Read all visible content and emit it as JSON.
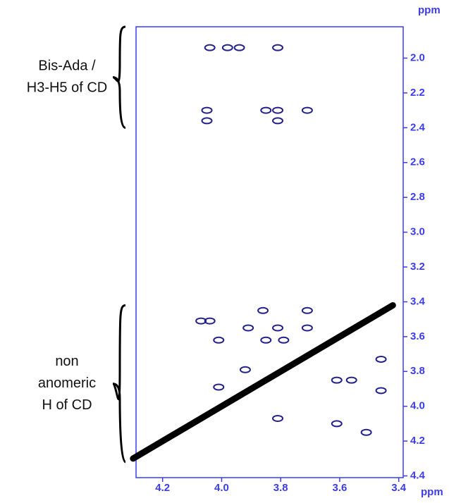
{
  "chart_data": {
    "type": "scatter",
    "x_label": "ppm",
    "y_label": "ppm",
    "annotations": [
      {
        "lines": [
          "Bis-Ada /",
          "H3-H5 of CD"
        ],
        "span": [
          1.82,
          2.4
        ]
      },
      {
        "lines": [
          "non",
          "anomeric",
          "H of CD"
        ],
        "span": [
          3.42,
          4.32
        ]
      }
    ],
    "xlim": [
      4.29,
      3.385
    ],
    "ylim": [
      1.82,
      4.41
    ],
    "xticks": [
      4.2,
      {
        "value": 4,
        "label": "4.0"
      },
      3.8,
      3.6,
      3.4
    ],
    "yticks": [
      {
        "value": 2,
        "label": "2.0"
      },
      2.2,
      2.4,
      2.6,
      2.8,
      {
        "value": 3,
        "label": "3.0"
      },
      3.2,
      3.4,
      3.6,
      3.8,
      {
        "value": 4,
        "label": "4.0"
      },
      4.2,
      4.4
    ],
    "axis_color": "#3b3bf0",
    "series": [
      {
        "color": "#000000",
        "line": true,
        "x": [
          4.3,
          3.42
        ],
        "y": [
          4.3,
          3.42
        ]
      },
      {
        "color": "#20208f",
        "line": false,
        "x": [
          4.04,
          3.98,
          3.94,
          3.81,
          4.05,
          3.85,
          3.81,
          3.71,
          4.05,
          3.81,
          4.07,
          4.04,
          3.86,
          3.71,
          3.91,
          3.81,
          3.71,
          4.01,
          3.85,
          3.79,
          3.46,
          3.92,
          3.61,
          3.56,
          3.46,
          4.01,
          3.81,
          3.61,
          3.51
        ],
        "y": [
          1.94,
          1.94,
          1.94,
          1.94,
          2.3,
          2.3,
          2.3,
          2.3,
          2.36,
          2.36,
          3.51,
          3.51,
          3.45,
          3.45,
          3.55,
          3.55,
          3.55,
          3.62,
          3.62,
          3.62,
          3.73,
          3.79,
          3.85,
          3.85,
          3.91,
          3.89,
          4.07,
          4.1,
          4.15
        ]
      }
    ]
  }
}
